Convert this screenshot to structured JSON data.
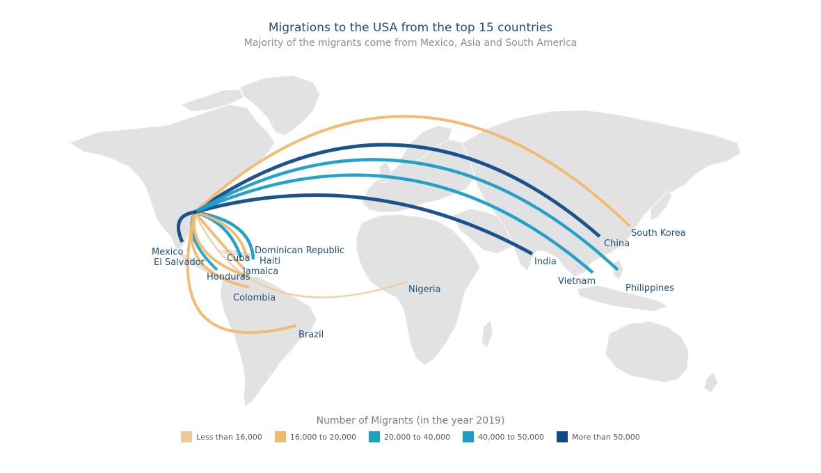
{
  "title": "Migrations to the USA from the top 15 countries",
  "subtitle": "Majority of the migrants come from Mexico, Asia and South America",
  "legend": {
    "title": "Number of Migrants (in the year 2019)",
    "items": [
      {
        "label": "Less than 16,000",
        "color": "#ecc999"
      },
      {
        "label": "16,000 to 20,000",
        "color": "#f2b86d"
      },
      {
        "label": "20,000 to 40,000",
        "color": "#1fa2c0"
      },
      {
        "label": "40,000 to 50,000",
        "color": "#1a9cc7"
      },
      {
        "label": "More than 50,000",
        "color": "#104a86"
      }
    ]
  },
  "destination": "USA",
  "countries": [
    {
      "name": "Mexico",
      "category": 4
    },
    {
      "name": "El Salvador",
      "category": 2
    },
    {
      "name": "Cuba",
      "category": 3
    },
    {
      "name": "Dominican Republic",
      "category": 3
    },
    {
      "name": "Haiti",
      "category": 1
    },
    {
      "name": "Jamaica",
      "category": 1
    },
    {
      "name": "Honduras",
      "category": 1
    },
    {
      "name": "Colombia",
      "category": 1
    },
    {
      "name": "Brazil",
      "category": 1
    },
    {
      "name": "Nigeria",
      "category": 0
    },
    {
      "name": "India",
      "category": 4
    },
    {
      "name": "China",
      "category": 4
    },
    {
      "name": "South Korea",
      "category": 1
    },
    {
      "name": "Vietnam",
      "category": 3
    },
    {
      "name": "Philippines",
      "category": 3
    }
  ],
  "colors": {
    "land": "#e2e2e2",
    "land_stroke": "#ffffff",
    "label": "#1f4e79"
  }
}
